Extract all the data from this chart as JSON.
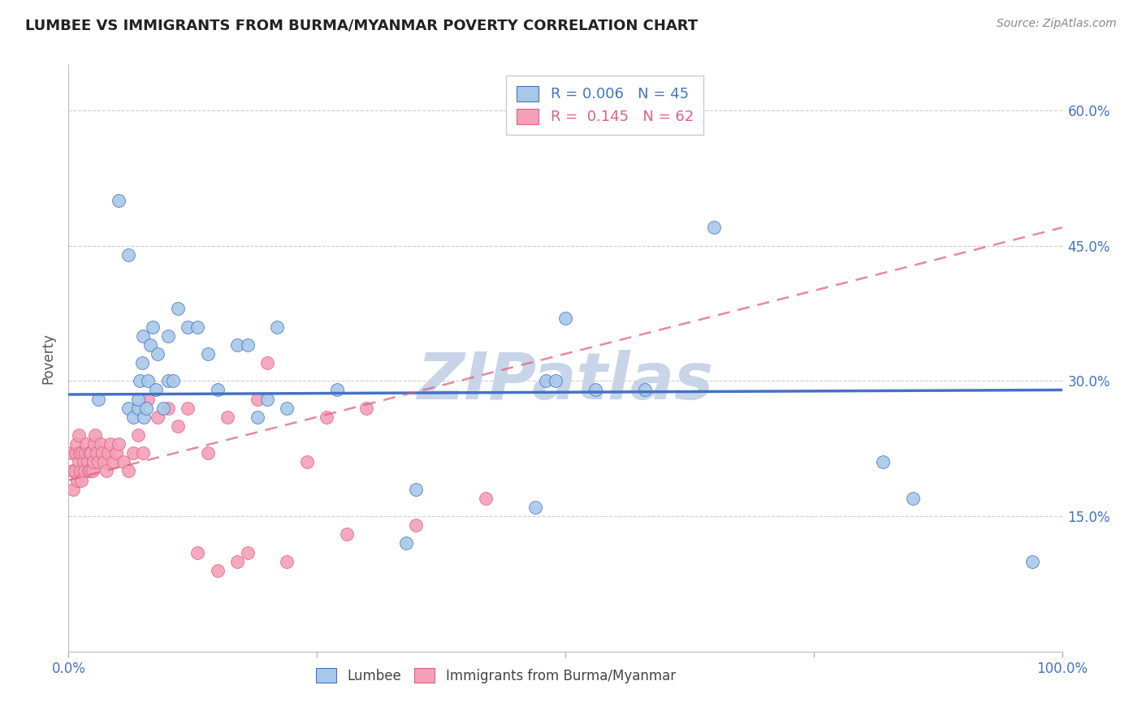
{
  "title": "LUMBEE VS IMMIGRANTS FROM BURMA/MYANMAR POVERTY CORRELATION CHART",
  "source": "Source: ZipAtlas.com",
  "ylabel": "Poverty",
  "xlim": [
    0,
    1.0
  ],
  "ylim": [
    0,
    0.65
  ],
  "yticks": [
    0.0,
    0.15,
    0.3,
    0.45,
    0.6
  ],
  "ytick_labels": [
    "",
    "15.0%",
    "30.0%",
    "45.0%",
    "60.0%"
  ],
  "xticks": [
    0.0,
    0.25,
    0.5,
    0.75,
    1.0
  ],
  "xtick_labels": [
    "0.0%",
    "",
    "",
    "",
    "100.0%"
  ],
  "lumbee_R": "0.006",
  "lumbee_N": "45",
  "burma_R": "0.145",
  "burma_N": "62",
  "lumbee_color": "#a8c8e8",
  "burma_color": "#f4a0b8",
  "lumbee_line_color": "#4472c4",
  "burma_line_color": "#e06080",
  "watermark": "ZIPatlas",
  "watermark_color": "#c8d4e8",
  "lumbee_trend_slope": 0.005,
  "lumbee_trend_intercept": 0.285,
  "burma_trend_slope": 0.28,
  "burma_trend_intercept": 0.19,
  "lumbee_x": [
    0.03,
    0.05,
    0.06,
    0.06,
    0.065,
    0.07,
    0.07,
    0.072,
    0.074,
    0.075,
    0.076,
    0.078,
    0.08,
    0.082,
    0.085,
    0.088,
    0.09,
    0.095,
    0.1,
    0.1,
    0.105,
    0.11,
    0.12,
    0.13,
    0.14,
    0.15,
    0.17,
    0.18,
    0.19,
    0.2,
    0.21,
    0.22,
    0.27,
    0.34,
    0.35,
    0.47,
    0.48,
    0.49,
    0.5,
    0.53,
    0.58,
    0.65,
    0.82,
    0.85,
    0.97
  ],
  "lumbee_y": [
    0.28,
    0.5,
    0.44,
    0.27,
    0.26,
    0.27,
    0.28,
    0.3,
    0.32,
    0.35,
    0.26,
    0.27,
    0.3,
    0.34,
    0.36,
    0.29,
    0.33,
    0.27,
    0.3,
    0.35,
    0.3,
    0.38,
    0.36,
    0.36,
    0.33,
    0.29,
    0.34,
    0.34,
    0.26,
    0.28,
    0.36,
    0.27,
    0.29,
    0.12,
    0.18,
    0.16,
    0.3,
    0.3,
    0.37,
    0.29,
    0.29,
    0.47,
    0.21,
    0.17,
    0.1
  ],
  "burma_x": [
    0.003,
    0.004,
    0.005,
    0.006,
    0.007,
    0.008,
    0.009,
    0.01,
    0.01,
    0.011,
    0.012,
    0.013,
    0.014,
    0.015,
    0.016,
    0.017,
    0.018,
    0.019,
    0.02,
    0.021,
    0.022,
    0.023,
    0.024,
    0.025,
    0.026,
    0.027,
    0.028,
    0.03,
    0.032,
    0.034,
    0.036,
    0.038,
    0.04,
    0.042,
    0.045,
    0.048,
    0.05,
    0.055,
    0.06,
    0.065,
    0.07,
    0.075,
    0.08,
    0.09,
    0.1,
    0.11,
    0.12,
    0.13,
    0.14,
    0.15,
    0.16,
    0.17,
    0.18,
    0.19,
    0.2,
    0.22,
    0.24,
    0.26,
    0.28,
    0.3,
    0.35,
    0.42
  ],
  "burma_y": [
    0.22,
    0.2,
    0.18,
    0.2,
    0.22,
    0.23,
    0.19,
    0.21,
    0.24,
    0.22,
    0.2,
    0.19,
    0.22,
    0.21,
    0.2,
    0.22,
    0.23,
    0.21,
    0.2,
    0.22,
    0.2,
    0.22,
    0.2,
    0.21,
    0.23,
    0.24,
    0.22,
    0.21,
    0.23,
    0.22,
    0.21,
    0.2,
    0.22,
    0.23,
    0.21,
    0.22,
    0.23,
    0.21,
    0.2,
    0.22,
    0.24,
    0.22,
    0.28,
    0.26,
    0.27,
    0.25,
    0.27,
    0.11,
    0.22,
    0.09,
    0.26,
    0.1,
    0.11,
    0.28,
    0.32,
    0.1,
    0.21,
    0.26,
    0.13,
    0.27,
    0.14,
    0.17
  ]
}
